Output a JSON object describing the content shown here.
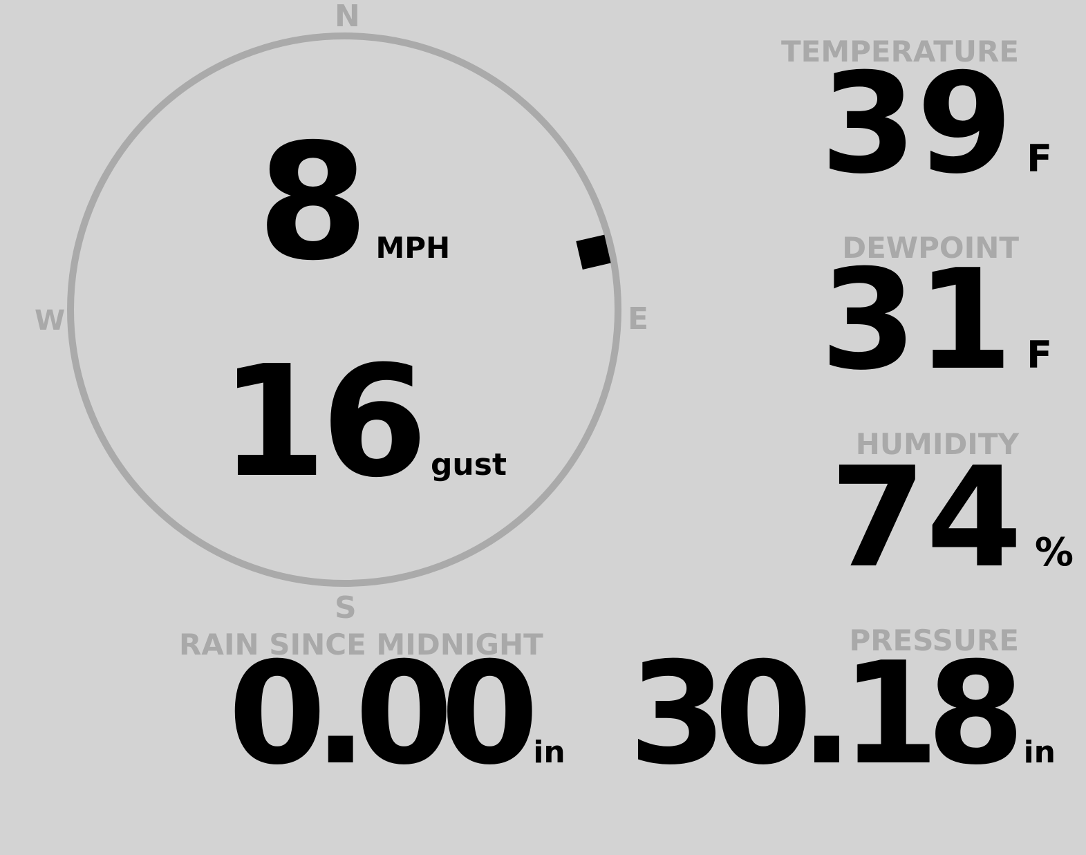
{
  "wind": {
    "speed": "8",
    "speed_unit": "MPH",
    "gust": "16",
    "gust_unit": "gust",
    "direction_degrees": 77,
    "compass": {
      "n": "N",
      "e": "E",
      "s": "S",
      "w": "W"
    }
  },
  "temperature": {
    "label": "TEMPERATURE",
    "value": "39",
    "unit": "F"
  },
  "dewpoint": {
    "label": "DEWPOINT",
    "value": "31",
    "unit": "F"
  },
  "humidity": {
    "label": "HUMIDITY",
    "value": "74",
    "unit": "%"
  },
  "rain": {
    "label": "RAIN SINCE MIDNIGHT",
    "value": "0.00",
    "unit": "in"
  },
  "pressure": {
    "label": "PRESSURE",
    "value": "30.18",
    "unit": "in"
  },
  "colors": {
    "background": "#d3d3d3",
    "label": "#a9a9a9",
    "value": "#000000"
  }
}
